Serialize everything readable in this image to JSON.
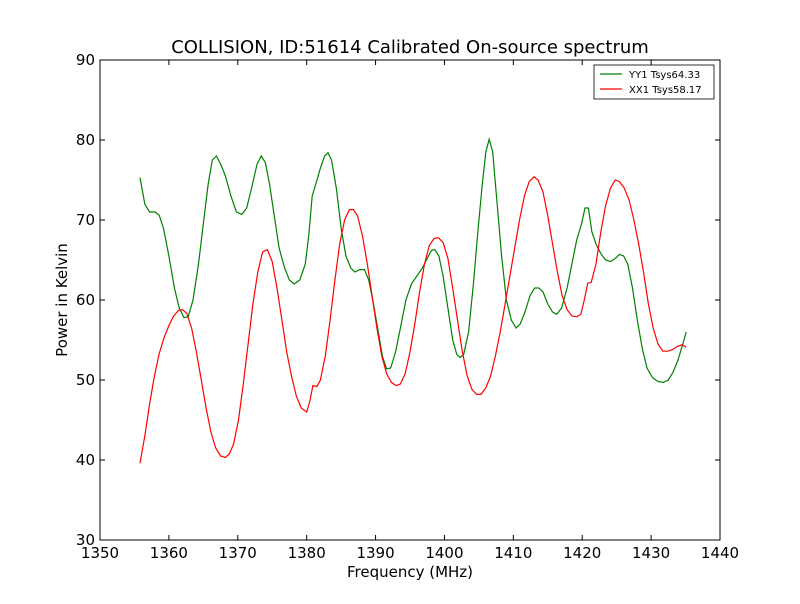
{
  "chart_data": {
    "type": "line",
    "title": "COLLISION, ID:51614 Calibrated On-source spectrum",
    "xlabel": "Frequency (MHz)",
    "ylabel": "Power in Kelvin",
    "xlim": [
      1350,
      1440
    ],
    "ylim": [
      30,
      90
    ],
    "xticks": [
      1350,
      1360,
      1370,
      1380,
      1390,
      1400,
      1410,
      1420,
      1430,
      1440
    ],
    "yticks": [
      30,
      40,
      50,
      60,
      70,
      80,
      90
    ],
    "grid": false,
    "legend_position": "top-right",
    "series": [
      {
        "name": "YY1 Tsys64.33",
        "color": "#008000",
        "points": [
          [
            1355.8,
            75.3
          ],
          [
            1356.5,
            72.0
          ],
          [
            1357.2,
            71.0
          ],
          [
            1358.0,
            71.0
          ],
          [
            1358.6,
            70.6
          ],
          [
            1359.2,
            69.0
          ],
          [
            1360.0,
            65.5
          ],
          [
            1360.8,
            61.5
          ],
          [
            1361.5,
            59.0
          ],
          [
            1362.2,
            57.8
          ],
          [
            1362.8,
            57.9
          ],
          [
            1363.5,
            60.0
          ],
          [
            1364.3,
            64.5
          ],
          [
            1365.0,
            69.5
          ],
          [
            1365.7,
            74.5
          ],
          [
            1366.3,
            77.5
          ],
          [
            1366.9,
            78.0
          ],
          [
            1367.5,
            77.0
          ],
          [
            1368.2,
            75.5
          ],
          [
            1369.0,
            73.0
          ],
          [
            1369.8,
            71.0
          ],
          [
            1370.6,
            70.7
          ],
          [
            1371.3,
            71.5
          ],
          [
            1372.0,
            74.0
          ],
          [
            1372.8,
            77.0
          ],
          [
            1373.4,
            78.0
          ],
          [
            1374.0,
            77.2
          ],
          [
            1374.6,
            74.5
          ],
          [
            1375.3,
            70.5
          ],
          [
            1376.0,
            66.5
          ],
          [
            1376.8,
            64.0
          ],
          [
            1377.5,
            62.5
          ],
          [
            1378.2,
            62.0
          ],
          [
            1379.0,
            62.5
          ],
          [
            1379.8,
            64.5
          ],
          [
            1380.3,
            68.0
          ],
          [
            1380.8,
            73.0
          ],
          [
            1381.5,
            75.0
          ],
          [
            1382.0,
            76.5
          ],
          [
            1382.6,
            78.0
          ],
          [
            1383.1,
            78.4
          ],
          [
            1383.6,
            77.5
          ],
          [
            1384.3,
            74.0
          ],
          [
            1385.0,
            69.0
          ],
          [
            1385.7,
            65.5
          ],
          [
            1386.4,
            64.0
          ],
          [
            1387.0,
            63.5
          ],
          [
            1387.7,
            63.8
          ],
          [
            1388.4,
            63.8
          ],
          [
            1389.0,
            62.5
          ],
          [
            1389.7,
            59.5
          ],
          [
            1390.4,
            56.0
          ],
          [
            1391.0,
            53.0
          ],
          [
            1391.6,
            51.4
          ],
          [
            1392.2,
            51.5
          ],
          [
            1392.9,
            53.5
          ],
          [
            1393.6,
            56.5
          ],
          [
            1394.4,
            60.0
          ],
          [
            1395.2,
            62.0
          ],
          [
            1396.0,
            63.0
          ],
          [
            1396.8,
            64.0
          ],
          [
            1397.5,
            65.2
          ],
          [
            1398.1,
            66.2
          ],
          [
            1398.6,
            66.3
          ],
          [
            1399.2,
            65.5
          ],
          [
            1399.8,
            63.0
          ],
          [
            1400.5,
            59.0
          ],
          [
            1401.2,
            55.0
          ],
          [
            1401.8,
            53.2
          ],
          [
            1402.3,
            52.8
          ],
          [
            1402.8,
            53.2
          ],
          [
            1403.5,
            56.0
          ],
          [
            1404.2,
            62.0
          ],
          [
            1404.9,
            69.0
          ],
          [
            1405.5,
            74.5
          ],
          [
            1406.0,
            78.5
          ],
          [
            1406.5,
            80.1
          ],
          [
            1407.0,
            78.5
          ],
          [
            1407.6,
            72.5
          ],
          [
            1408.3,
            65.5
          ],
          [
            1409.0,
            60.0
          ],
          [
            1409.7,
            57.5
          ],
          [
            1410.4,
            56.5
          ],
          [
            1411.0,
            57.0
          ],
          [
            1411.7,
            58.5
          ],
          [
            1412.4,
            60.5
          ],
          [
            1413.1,
            61.5
          ],
          [
            1413.7,
            61.5
          ],
          [
            1414.3,
            61.0
          ],
          [
            1415.0,
            59.5
          ],
          [
            1415.7,
            58.5
          ],
          [
            1416.3,
            58.2
          ],
          [
            1417.0,
            59.0
          ],
          [
            1417.8,
            61.5
          ],
          [
            1418.5,
            64.5
          ],
          [
            1419.2,
            67.5
          ],
          [
            1419.9,
            69.5
          ],
          [
            1420.4,
            71.5
          ],
          [
            1420.9,
            71.5
          ],
          [
            1421.4,
            68.5
          ],
          [
            1422.0,
            67.0
          ],
          [
            1422.7,
            65.8
          ],
          [
            1423.4,
            65.0
          ],
          [
            1424.1,
            64.8
          ],
          [
            1424.8,
            65.2
          ],
          [
            1425.4,
            65.7
          ],
          [
            1426.0,
            65.5
          ],
          [
            1426.6,
            64.5
          ],
          [
            1427.3,
            61.5
          ],
          [
            1428.0,
            57.5
          ],
          [
            1428.7,
            54.0
          ],
          [
            1429.4,
            51.5
          ],
          [
            1430.2,
            50.3
          ],
          [
            1431.0,
            49.8
          ],
          [
            1431.8,
            49.7
          ],
          [
            1432.5,
            50.0
          ],
          [
            1433.2,
            51.0
          ],
          [
            1433.9,
            52.5
          ],
          [
            1434.6,
            54.5
          ],
          [
            1435.1,
            56.0
          ]
        ]
      },
      {
        "name": "XX1 Tsys58.17",
        "color": "#ff0000",
        "points": [
          [
            1355.8,
            39.6
          ],
          [
            1356.5,
            43.0
          ],
          [
            1357.2,
            47.0
          ],
          [
            1357.9,
            50.5
          ],
          [
            1358.6,
            53.3
          ],
          [
            1359.3,
            55.3
          ],
          [
            1360.0,
            56.8
          ],
          [
            1360.7,
            58.0
          ],
          [
            1361.4,
            58.7
          ],
          [
            1362.0,
            58.8
          ],
          [
            1362.6,
            58.3
          ],
          [
            1363.3,
            56.5
          ],
          [
            1364.0,
            53.5
          ],
          [
            1364.7,
            50.0
          ],
          [
            1365.4,
            46.5
          ],
          [
            1366.1,
            43.5
          ],
          [
            1366.8,
            41.5
          ],
          [
            1367.5,
            40.5
          ],
          [
            1368.2,
            40.3
          ],
          [
            1368.8,
            40.8
          ],
          [
            1369.4,
            42.0
          ],
          [
            1370.1,
            45.0
          ],
          [
            1370.8,
            49.5
          ],
          [
            1371.5,
            54.5
          ],
          [
            1372.2,
            59.5
          ],
          [
            1372.9,
            63.5
          ],
          [
            1373.6,
            66.0
          ],
          [
            1374.3,
            66.3
          ],
          [
            1375.0,
            64.8
          ],
          [
            1375.7,
            61.5
          ],
          [
            1376.4,
            57.5
          ],
          [
            1377.1,
            53.5
          ],
          [
            1377.8,
            50.5
          ],
          [
            1378.5,
            48.0
          ],
          [
            1379.2,
            46.5
          ],
          [
            1380.0,
            46.0
          ],
          [
            1380.5,
            47.5
          ],
          [
            1380.9,
            49.3
          ],
          [
            1381.5,
            49.2
          ],
          [
            1382.0,
            50.0
          ],
          [
            1382.7,
            53.0
          ],
          [
            1383.4,
            57.5
          ],
          [
            1384.1,
            62.5
          ],
          [
            1384.8,
            67.0
          ],
          [
            1385.5,
            70.0
          ],
          [
            1386.2,
            71.3
          ],
          [
            1386.8,
            71.3
          ],
          [
            1387.4,
            70.5
          ],
          [
            1388.1,
            68.0
          ],
          [
            1388.8,
            64.5
          ],
          [
            1389.5,
            60.5
          ],
          [
            1390.2,
            56.5
          ],
          [
            1390.9,
            53.0
          ],
          [
            1391.6,
            50.8
          ],
          [
            1392.3,
            49.7
          ],
          [
            1393.0,
            49.3
          ],
          [
            1393.6,
            49.5
          ],
          [
            1394.3,
            50.8
          ],
          [
            1395.0,
            53.5
          ],
          [
            1395.7,
            57.0
          ],
          [
            1396.4,
            61.0
          ],
          [
            1397.1,
            64.5
          ],
          [
            1397.8,
            66.8
          ],
          [
            1398.5,
            67.7
          ],
          [
            1399.1,
            67.8
          ],
          [
            1399.8,
            67.2
          ],
          [
            1400.5,
            65.2
          ],
          [
            1401.2,
            61.5
          ],
          [
            1401.9,
            57.5
          ],
          [
            1402.6,
            53.5
          ],
          [
            1403.3,
            50.5
          ],
          [
            1404.0,
            48.8
          ],
          [
            1404.7,
            48.2
          ],
          [
            1405.3,
            48.2
          ],
          [
            1406.0,
            49.0
          ],
          [
            1406.7,
            50.5
          ],
          [
            1407.4,
            53.0
          ],
          [
            1408.1,
            56.0
          ],
          [
            1408.8,
            59.5
          ],
          [
            1409.5,
            63.0
          ],
          [
            1410.2,
            66.5
          ],
          [
            1410.9,
            70.0
          ],
          [
            1411.6,
            73.0
          ],
          [
            1412.3,
            74.8
          ],
          [
            1413.0,
            75.4
          ],
          [
            1413.6,
            75.0
          ],
          [
            1414.3,
            73.5
          ],
          [
            1415.0,
            70.5
          ],
          [
            1415.7,
            67.0
          ],
          [
            1416.4,
            63.5
          ],
          [
            1417.1,
            60.5
          ],
          [
            1417.8,
            58.8
          ],
          [
            1418.5,
            58.0
          ],
          [
            1419.2,
            57.9
          ],
          [
            1419.8,
            58.2
          ],
          [
            1420.3,
            60.0
          ],
          [
            1420.8,
            62.1
          ],
          [
            1421.3,
            62.2
          ],
          [
            1422.0,
            64.5
          ],
          [
            1422.7,
            68.5
          ],
          [
            1423.4,
            71.8
          ],
          [
            1424.1,
            74.0
          ],
          [
            1424.8,
            75.0
          ],
          [
            1425.4,
            74.8
          ],
          [
            1426.1,
            74.0
          ],
          [
            1426.8,
            72.5
          ],
          [
            1427.5,
            70.0
          ],
          [
            1428.2,
            67.0
          ],
          [
            1428.9,
            63.5
          ],
          [
            1429.6,
            59.5
          ],
          [
            1430.3,
            56.5
          ],
          [
            1431.0,
            54.5
          ],
          [
            1431.7,
            53.6
          ],
          [
            1432.4,
            53.6
          ],
          [
            1433.1,
            53.8
          ],
          [
            1433.8,
            54.2
          ],
          [
            1434.5,
            54.4
          ],
          [
            1435.1,
            54.1
          ]
        ]
      }
    ]
  }
}
